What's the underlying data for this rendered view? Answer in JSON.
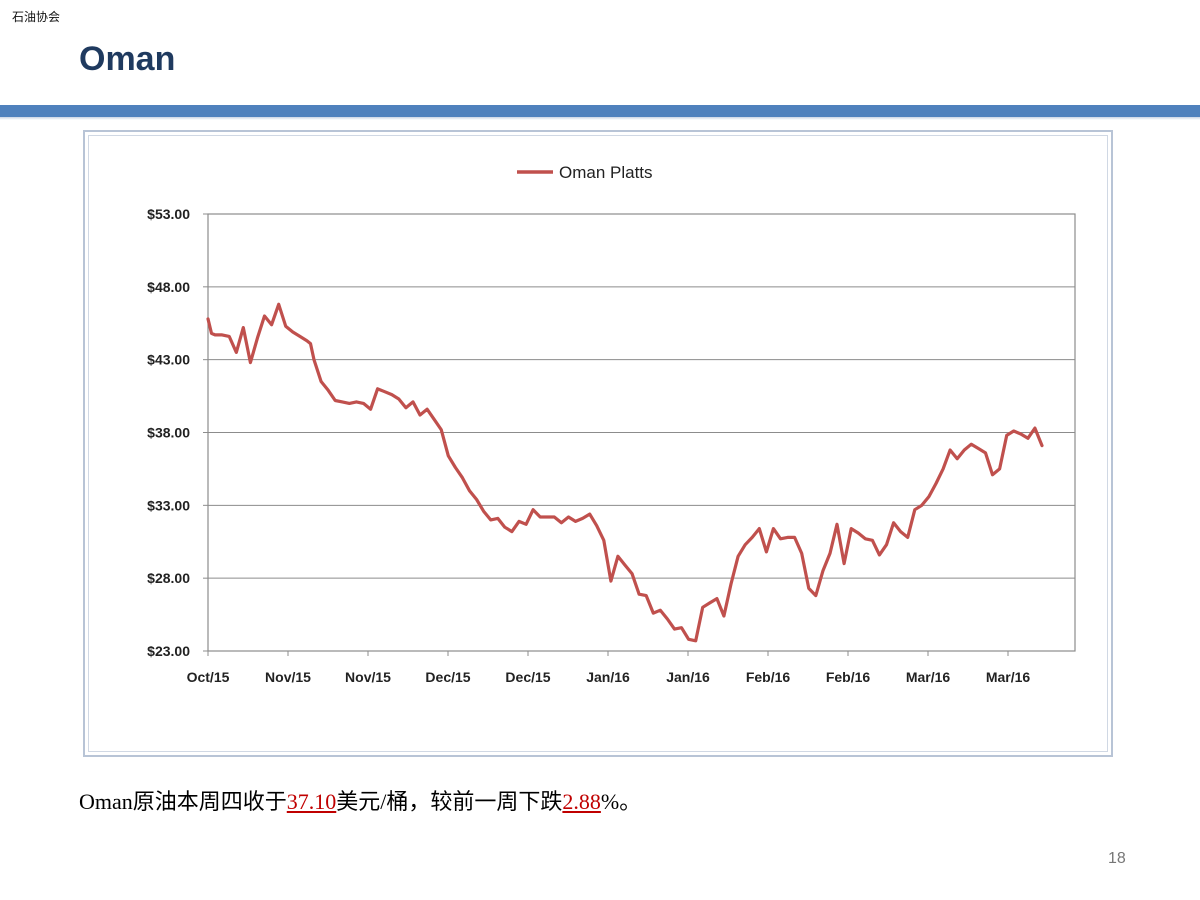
{
  "header": {
    "org_label": "石油协会",
    "title": "Oman"
  },
  "colors": {
    "title": "#1f3a5f",
    "band": "#4f81bd",
    "series": "#c0504d",
    "highlight": "#c00000",
    "grid": "#8c8c8c"
  },
  "chart_data": {
    "type": "line",
    "legend_position": "top-center",
    "grid": true,
    "ylim": [
      23,
      53
    ],
    "yticks": [
      "$53.00",
      "$48.00",
      "$43.00",
      "$38.00",
      "$33.00",
      "$28.00",
      "$23.00"
    ],
    "ytick_values": [
      53,
      48,
      43,
      38,
      33,
      28,
      23
    ],
    "xticks": [
      "Oct/15",
      "Nov/15",
      "Nov/15",
      "Dec/15",
      "Dec/15",
      "Jan/16",
      "Jan/16",
      "Feb/16",
      "Feb/16",
      "Mar/16",
      "Mar/16"
    ],
    "xlim": [
      0,
      110
    ],
    "series": [
      {
        "name": "Oman Platts",
        "x": [
          0,
          0.5,
          1,
          2,
          3,
          4,
          5,
          6,
          7,
          8,
          9,
          10,
          11,
          12,
          13,
          14,
          14.5,
          15,
          16,
          17,
          18,
          19,
          20,
          21,
          22,
          23,
          24,
          25,
          26,
          27,
          28,
          29,
          30,
          31,
          32,
          33,
          34,
          35,
          36,
          37,
          38,
          39,
          40,
          41,
          42,
          43,
          44,
          45,
          46,
          47,
          48,
          49,
          50,
          51,
          52,
          53,
          54,
          55,
          56,
          57,
          58,
          59,
          60,
          61,
          62,
          63,
          64,
          65,
          66,
          67,
          68,
          69,
          70,
          71,
          72,
          73,
          74,
          75,
          76,
          77,
          78,
          79,
          80,
          81,
          82,
          83,
          84,
          85,
          86,
          87,
          88,
          89,
          90,
          91,
          92,
          93,
          94,
          95,
          96,
          97,
          98,
          99,
          100,
          101,
          102,
          103,
          104
        ],
        "values": [
          45.8,
          44.8,
          44.7,
          44.7,
          44.6,
          43.5,
          45.2,
          42.8,
          44.5,
          46.0,
          45.4,
          46.8,
          45.3,
          44.9,
          44.6,
          44.3,
          44.1,
          43.0,
          41.5,
          40.9,
          40.2,
          40.1,
          40.0,
          40.1,
          40.0,
          39.6,
          41.0,
          40.8,
          40.6,
          40.3,
          39.7,
          40.1,
          39.2,
          39.6,
          38.9,
          38.2,
          36.4,
          35.6,
          34.9,
          34.0,
          33.4,
          32.6,
          32.0,
          32.1,
          31.5,
          31.2,
          31.9,
          31.7,
          32.7,
          32.2,
          32.2,
          32.2,
          31.8,
          32.2,
          31.9,
          32.1,
          32.4,
          31.6,
          30.6,
          27.8,
          29.5,
          28.9,
          28.3,
          26.9,
          26.8,
          25.6,
          25.8,
          25.2,
          24.5,
          24.6,
          23.8,
          23.7,
          26.0,
          26.3,
          26.6,
          25.4,
          27.6,
          29.5,
          30.3,
          30.8,
          31.4,
          29.8,
          31.4,
          30.7,
          30.8,
          30.8,
          29.7,
          27.3,
          26.8,
          28.5,
          29.7,
          31.7,
          29.0,
          31.4,
          31.1,
          30.7,
          30.6,
          29.6,
          30.3,
          31.8,
          31.2,
          30.8,
          32.7,
          33.0,
          33.6,
          34.5,
          35.5
        ],
        "x_end": [
          105,
          106,
          107,
          108,
          109,
          110,
          111,
          112,
          113,
          114,
          115,
          116,
          117,
          118
        ],
        "values_end": [
          36.8,
          36.2,
          36.8,
          37.2,
          36.9,
          36.6,
          35.1,
          35.5,
          37.8,
          38.1,
          37.9,
          37.6,
          38.3,
          37.1
        ]
      }
    ]
  },
  "summary": {
    "before": "Oman原油本周四收于",
    "price": "37.10",
    "middle": "美元/桶，较前一周下跌",
    "change": "2.88",
    "after": "%。"
  },
  "page_number": "18"
}
